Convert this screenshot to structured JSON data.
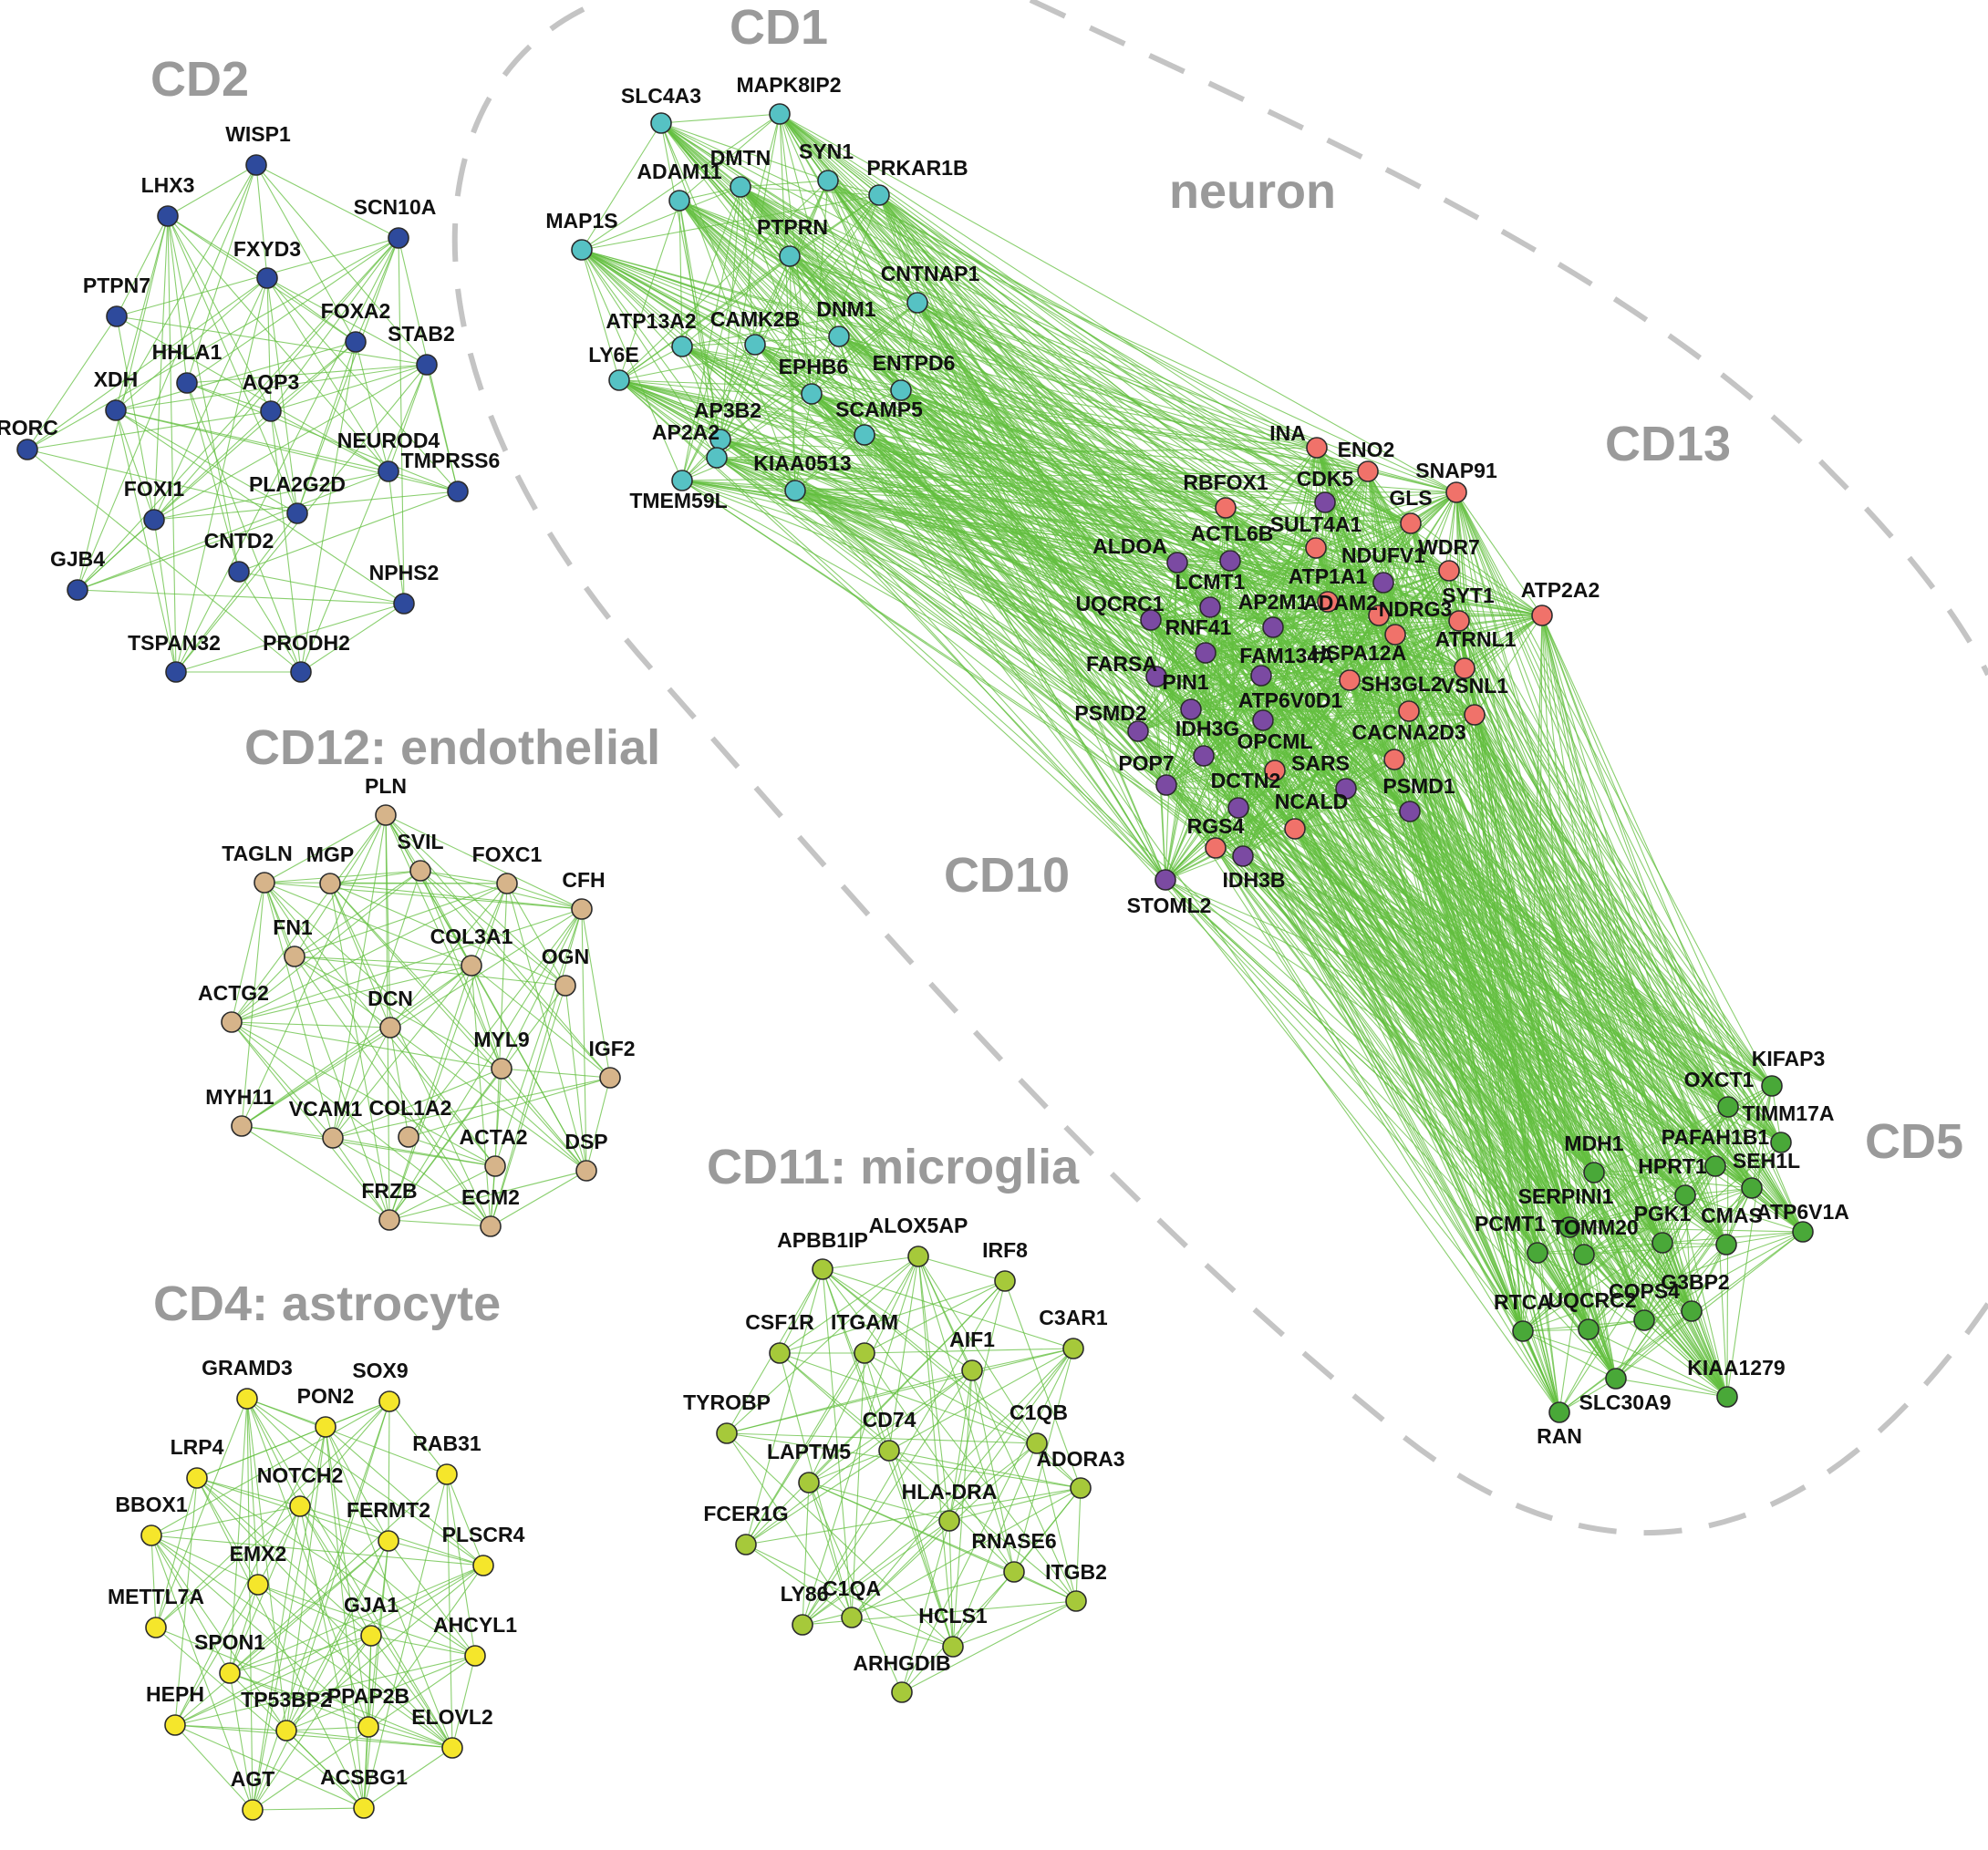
{
  "colors": {
    "edge": "#63bf3f",
    "label": "#9a9a9a",
    "CD1": "#56c2c4",
    "CD2": "#2e4a9c",
    "CD4": "#f5e62b",
    "CD5": "#49a838",
    "CD10": "#7b4aa2",
    "CD11": "#a6c93a",
    "CD12": "#d6b48a",
    "CD13": "#f0726a"
  },
  "labels": {
    "CD1": "CD1",
    "CD2": "CD2",
    "neuron": "neuron",
    "CD13": "CD13",
    "CD10": "CD10",
    "CD5": "CD5",
    "CD12": "CD12: endothelial",
    "CD11": "CD11: microglia",
    "CD4": "CD4: astrocyte"
  },
  "clusters": [
    {
      "id": "CD1",
      "nodes": [
        "SLC4A3",
        "MAPK8IP2",
        "ADAM11",
        "DMTN",
        "SYN1",
        "PRKAR1B",
        "MAP1S",
        "PTPRN",
        "CNTNAP1",
        "ATP13A2",
        "CAMK2B",
        "DNM1",
        "LY6E",
        "EPHB6",
        "ENTPD6",
        "AP3B2",
        "SCAMP5",
        "AP2A2",
        "KIAA0513",
        "TMEM59L"
      ]
    },
    {
      "id": "CD2",
      "nodes": [
        "WISP1",
        "LHX3",
        "SCN10A",
        "FXYD3",
        "PTPN7",
        "FOXA2",
        "HHLA1",
        "AQP3",
        "XDH",
        "STAB2",
        "RORC",
        "NEUROD4",
        "FOXI1",
        "PLA2G2D",
        "TMPRSS6",
        "CNTD2",
        "GJB4",
        "NPHS2",
        "TSPAN32",
        "PRODH2"
      ]
    },
    {
      "id": "CD13",
      "nodes": [
        "INA",
        "ENO2",
        "SNAP91",
        "RBFOX1",
        "GLS",
        "SULT4A1",
        "WDR7",
        "ATP1A1",
        "ADAM2",
        "NDRG3",
        "SYT1",
        "ATP2A2",
        "ATRNL1",
        "HSPA12A",
        "SH3GL2",
        "VSNL1",
        "CACNA2D3",
        "OPCML",
        "NCALD",
        "RGS4"
      ]
    },
    {
      "id": "CD10",
      "nodes": [
        "CDK5",
        "ACTL6B",
        "ALDOA",
        "NDUFV1",
        "LCMT1",
        "UQCRC1",
        "AP2M1",
        "RNF41",
        "FARSA",
        "FAM134A",
        "PIN1",
        "ATP6V0D1",
        "PSMD2",
        "IDH3G",
        "POP7",
        "SARS",
        "DCTN2",
        "PSMD1",
        "IDH3B",
        "STOML2"
      ]
    },
    {
      "id": "CD12",
      "nodes": [
        "PLN",
        "TAGLN",
        "MGP",
        "SVIL",
        "FOXC1",
        "CFH",
        "FN1",
        "COL3A1",
        "OGN",
        "ACTG2",
        "DCN",
        "MYL9",
        "IGF2",
        "MYH11",
        "VCAM1",
        "COL1A2",
        "ACTA2",
        "DSP",
        "FRZB",
        "ECM2"
      ]
    },
    {
      "id": "CD5",
      "nodes": [
        "KIFAP3",
        "OXCT1",
        "TIMM17A",
        "MDH1",
        "PAFAH1B1",
        "HPRT1",
        "SEH1L",
        "SERPINI1",
        "PCMT1",
        "PGK1",
        "CMAS",
        "ATP6V1A",
        "TOMM20",
        "COPS4",
        "G3BP2",
        "RTCA",
        "UQCRC2",
        "SLC30A9",
        "KIAA1279",
        "RAN"
      ]
    },
    {
      "id": "CD11",
      "nodes": [
        "APBB1IP",
        "ALOX5AP",
        "IRF8",
        "CSF1R",
        "ITGAM",
        "AIF1",
        "C3AR1",
        "TYROBP",
        "CD74",
        "C1QB",
        "LAPTM5",
        "ADORA3",
        "HLA-DRA",
        "FCER1G",
        "RNASE6",
        "ITGB2",
        "LY86",
        "C1QA",
        "HCLS1",
        "ARHGDIB"
      ]
    },
    {
      "id": "CD4",
      "nodes": [
        "GRAMD3",
        "SOX9",
        "PON2",
        "RAB31",
        "LRP4",
        "NOTCH2",
        "BBOX1",
        "FERMT2",
        "PLSCR4",
        "EMX2",
        "METTL7A",
        "GJA1",
        "AHCYL1",
        "SPON1",
        "HEPH",
        "TP53BP2",
        "PPAP2B",
        "ELOVL2",
        "AGT",
        "ACSBG1"
      ]
    }
  ]
}
